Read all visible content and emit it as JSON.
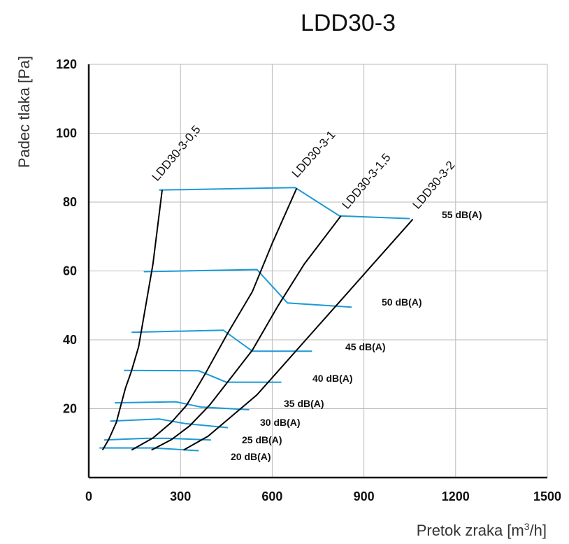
{
  "chart_data": {
    "type": "line",
    "title": "LDD30-3",
    "xlabel": "Pretok zraka [m³/h]",
    "ylabel": "Padec tlaka  [Pa]",
    "xlim": [
      0,
      1500
    ],
    "ylim": [
      0,
      120
    ],
    "xticks": [
      "0",
      "300",
      "600",
      "900",
      "1200",
      "1500"
    ],
    "yticks": [
      "20",
      "40",
      "60",
      "80",
      "100",
      "120"
    ],
    "grid": true,
    "series": [
      {
        "name": "LDD30-3-0,5",
        "color": "#000000",
        "points": [
          [
            45,
            8
          ],
          [
            65,
            11
          ],
          [
            75,
            13
          ],
          [
            90,
            16
          ],
          [
            105,
            21
          ],
          [
            120,
            26
          ],
          [
            140,
            31
          ],
          [
            163,
            38
          ],
          [
            210,
            62
          ],
          [
            240,
            83.5
          ]
        ]
      },
      {
        "name": "LDD30-3-1",
        "color": "#000000",
        "points": [
          [
            140,
            8
          ],
          [
            210,
            11.5
          ],
          [
            270,
            16
          ],
          [
            320,
            21
          ],
          [
            380,
            30
          ],
          [
            455,
            42
          ],
          [
            535,
            54
          ],
          [
            600,
            68
          ],
          [
            680,
            84
          ]
        ]
      },
      {
        "name": "LDD30-3-1,5",
        "color": "#000000",
        "points": [
          [
            205,
            8
          ],
          [
            270,
            11
          ],
          [
            330,
            15
          ],
          [
            395,
            21
          ],
          [
            465,
            29
          ],
          [
            535,
            37
          ],
          [
            620,
            50
          ],
          [
            705,
            62
          ],
          [
            825,
            76
          ]
        ]
      },
      {
        "name": "LDD30-3-2",
        "color": "#000000",
        "points": [
          [
            310,
            8
          ],
          [
            390,
            12
          ],
          [
            470,
            18
          ],
          [
            550,
            24
          ],
          [
            630,
            32
          ],
          [
            710,
            40
          ],
          [
            800,
            49
          ],
          [
            920,
            61
          ],
          [
            1060,
            75
          ]
        ]
      }
    ],
    "sound_levels": [
      {
        "label": "55 dB(A)",
        "color": "#1c9ad6",
        "points": [
          [
            230,
            83.5
          ],
          [
            675,
            84.2
          ],
          [
            820,
            76
          ],
          [
            1050,
            75.2
          ]
        ]
      },
      {
        "label": "50 dB(A)",
        "color": "#1c9ad6",
        "points": [
          [
            180,
            59.8
          ],
          [
            550,
            60.4
          ],
          [
            650,
            50.7
          ],
          [
            860,
            49.5
          ]
        ]
      },
      {
        "label": "45 dB(A)",
        "color": "#1c9ad6",
        "points": [
          [
            140,
            42.2
          ],
          [
            440,
            42.8
          ],
          [
            535,
            36.7
          ],
          [
            730,
            36.7
          ]
        ]
      },
      {
        "label": "40 dB(A)",
        "color": "#1c9ad6",
        "points": [
          [
            115,
            31.1
          ],
          [
            360,
            31
          ],
          [
            450,
            27.7
          ],
          [
            630,
            27.7
          ]
        ]
      },
      {
        "label": "35 dB(A)",
        "color": "#1c9ad6",
        "points": [
          [
            85,
            21.7
          ],
          [
            285,
            22
          ],
          [
            365,
            20.5
          ],
          [
            525,
            19.7
          ]
        ]
      },
      {
        "label": "30 dB(A)",
        "color": "#1c9ad6",
        "points": [
          [
            70,
            16.4
          ],
          [
            230,
            17
          ],
          [
            315,
            15.7
          ],
          [
            455,
            14.5
          ]
        ]
      },
      {
        "label": "25 dB(A)",
        "color": "#1c9ad6",
        "points": [
          [
            50,
            10.9
          ],
          [
            185,
            11.4
          ],
          [
            260,
            11.4
          ],
          [
            400,
            10.9
          ]
        ]
      },
      {
        "label": "20 dB(A)",
        "color": "#1c9ad6",
        "points": [
          [
            35,
            8.6
          ],
          [
            135,
            8.6
          ],
          [
            210,
            8.6
          ],
          [
            360,
            7.8
          ]
        ]
      }
    ]
  }
}
